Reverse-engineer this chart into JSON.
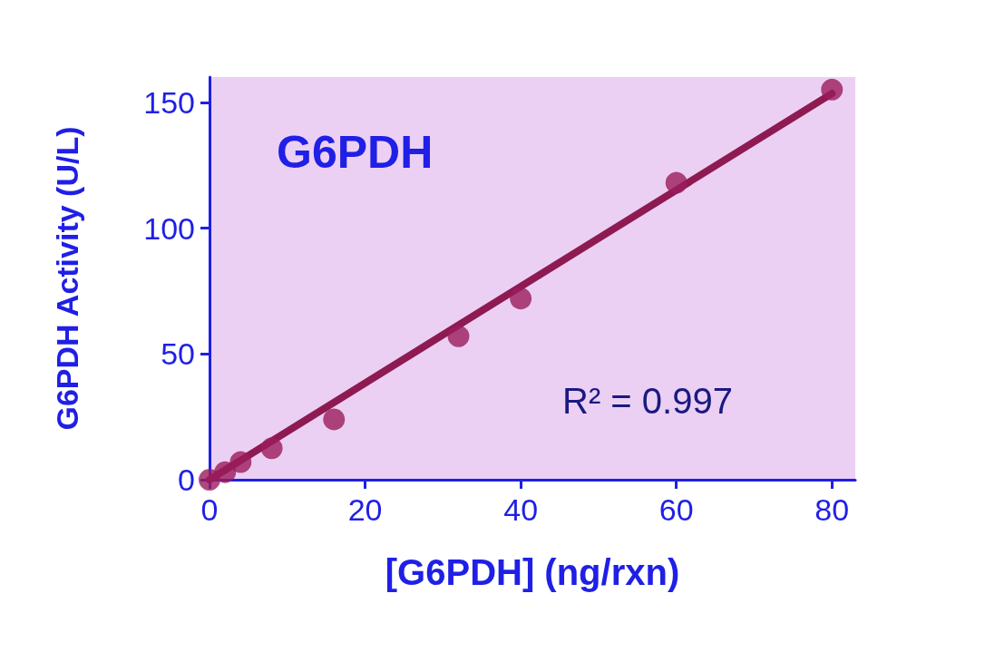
{
  "chart_data": {
    "type": "scatter",
    "title": "G6PDH",
    "xlabel": "[G6PDH] (ng/rxn)",
    "ylabel": "G6PDH Activity (U/L)",
    "annotations": [
      "R² = 0.997"
    ],
    "xlim": [
      0,
      83
    ],
    "ylim": [
      0,
      160
    ],
    "xticks": [
      0,
      20,
      40,
      60,
      80
    ],
    "yticks": [
      0,
      50,
      100,
      150
    ],
    "grid": false,
    "marker": "circle",
    "series": [
      {
        "color": "#9b1c5c",
        "x": [
          0,
          2,
          4,
          8,
          16,
          32,
          40,
          60,
          80
        ],
        "values": [
          0,
          3,
          7,
          12.5,
          24,
          57,
          72,
          118,
          155
        ]
      },
      {
        "type": "line",
        "color": "#8e1a52",
        "marker": "none",
        "line_style": "solid",
        "x": [
          0,
          80
        ],
        "values": [
          0,
          153.5
        ]
      }
    ]
  }
}
